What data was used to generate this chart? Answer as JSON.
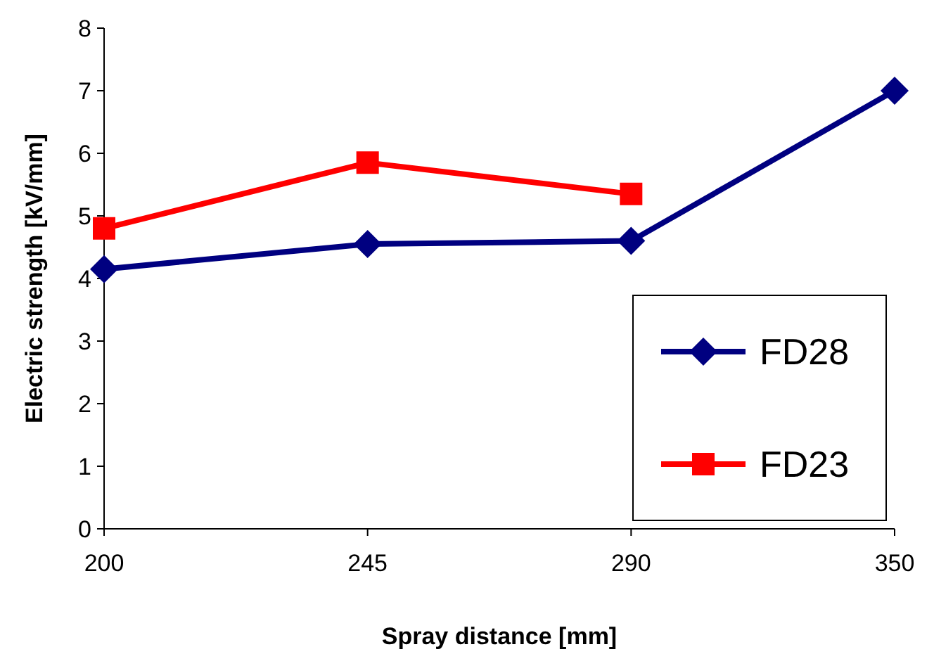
{
  "chart_data": {
    "type": "line",
    "xlabel": "Spray distance [mm]",
    "ylabel": "Electric strength [kV/mm]",
    "categories": [
      "200",
      "245",
      "290",
      "350"
    ],
    "ylim": [
      0,
      8
    ],
    "yticks": [
      0,
      1,
      2,
      3,
      4,
      5,
      6,
      7,
      8
    ],
    "grid": false,
    "legend": "bottom right",
    "series": [
      {
        "name": "FD28",
        "color": "#000080",
        "marker": "diamond",
        "values": [
          4.15,
          4.55,
          4.6,
          7.0
        ]
      },
      {
        "name": "FD23",
        "color": "#ff0000",
        "marker": "square",
        "values": [
          4.8,
          5.85,
          5.35,
          null
        ]
      }
    ]
  }
}
